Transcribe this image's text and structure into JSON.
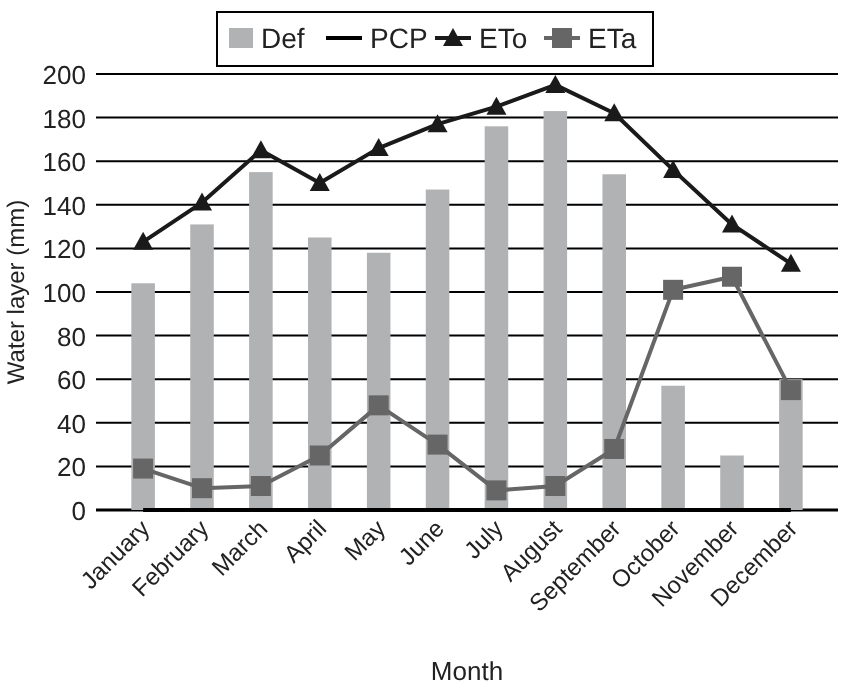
{
  "chart_data": {
    "type": "bar",
    "xlabel": "Month",
    "ylabel": "Water layer (mm)",
    "categories": [
      "January",
      "February",
      "March",
      "April",
      "May",
      "June",
      "July",
      "August",
      "September",
      "October",
      "November",
      "December"
    ],
    "series": [
      {
        "name": "Def",
        "color": "#b1b2b4",
        "values": [
          104,
          131,
          155,
          125,
          118,
          147,
          176,
          183,
          154,
          57,
          25,
          60
        ]
      },
      {
        "name": "PCP",
        "type": "line",
        "color": "#000000",
        "marker": "none",
        "values": [
          0,
          0,
          0,
          0,
          0,
          0,
          0,
          0,
          0,
          0,
          0,
          0
        ]
      },
      {
        "name": "ETo",
        "type": "line",
        "color": "#1a1a1a",
        "marker": "triangle",
        "values": [
          123,
          141,
          165,
          150,
          166,
          177,
          185,
          195,
          182,
          156,
          131,
          113
        ]
      },
      {
        "name": "ETa",
        "type": "line",
        "color": "#666666",
        "marker": "square",
        "values": [
          19,
          10,
          11,
          25,
          48,
          30,
          9,
          11,
          28,
          101,
          107,
          55
        ]
      }
    ],
    "ylim": [
      0,
      200
    ],
    "yticks": [
      0,
      20,
      40,
      60,
      80,
      100,
      120,
      140,
      160,
      180,
      200
    ],
    "grid": "y",
    "legend": "top"
  }
}
